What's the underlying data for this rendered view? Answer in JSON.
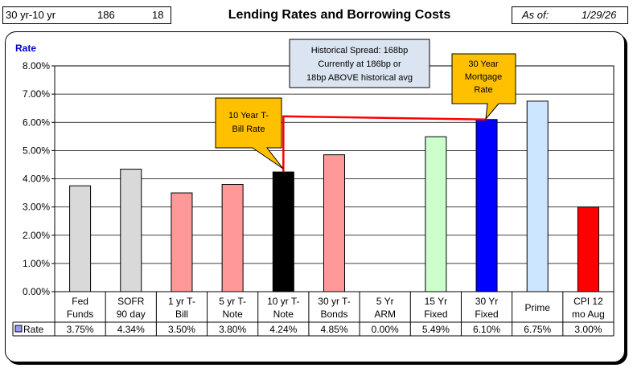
{
  "header": {
    "spread_label": "30 yr-10 yr",
    "spread_bp": "186",
    "above_avg_bp": "18",
    "title": "Lending Rates and Borrowing Costs",
    "asof_label": "As of:",
    "asof_date": "1/29/26"
  },
  "chart_data": {
    "type": "bar",
    "title": "Lending Rates and Borrowing Costs",
    "ylabel": "Rate",
    "xlabel": "",
    "ylim": [
      0,
      8
    ],
    "yticks": [
      "0.00%",
      "1.00%",
      "2.00%",
      "3.00%",
      "4.00%",
      "5.00%",
      "6.00%",
      "7.00%",
      "8.00%"
    ],
    "grid": true,
    "categories": [
      [
        "Fed",
        "Funds"
      ],
      [
        "SOFR",
        "90 day"
      ],
      [
        "1 yr  T-",
        "Bill"
      ],
      [
        "5 yr T-",
        "Note"
      ],
      [
        "10 yr T-",
        "Note"
      ],
      [
        "30 yr T-",
        "Bonds"
      ],
      [
        "5 Yr",
        "ARM"
      ],
      [
        "15 Yr",
        "Fixed"
      ],
      [
        "30 Yr",
        "Fixed"
      ],
      [
        "Prime"
      ],
      [
        "CPI 12",
        "mo Aug"
      ]
    ],
    "series": [
      {
        "name": "Rate",
        "values": [
          3.75,
          4.34,
          3.5,
          3.8,
          4.24,
          4.85,
          0.0,
          5.49,
          6.1,
          6.75,
          3.0
        ],
        "labels": [
          "3.75%",
          "4.34%",
          "3.50%",
          "3.80%",
          "4.24%",
          "4.85%",
          "0.00%",
          "5.49%",
          "6.10%",
          "6.75%",
          "3.00%"
        ]
      }
    ],
    "bar_colors": [
      "#d9d9d9",
      "#d9d9d9",
      "#ff9999",
      "#ff9999",
      "#000000",
      "#ff9999",
      "#ffffff",
      "#ccffcc",
      "#0000ff",
      "#cce6ff",
      "#ff0000"
    ],
    "legend_swatch_color": "#9999ff",
    "annotations": {
      "spread_box": [
        "Historical Spread: 168bp",
        "Currently at 186bp  or",
        "18bp ABOVE historical avg"
      ],
      "ten_year_callout": [
        "10 Year T-",
        "Bill Rate"
      ],
      "thirty_year_callout": [
        "30 Year",
        "Mortgage",
        "Rate"
      ]
    },
    "colors": {
      "ylabel": "#0000cc",
      "callout_fill": "#ffc000",
      "spread_fill": "#dbe5f1",
      "connector": "#ff0000"
    }
  }
}
